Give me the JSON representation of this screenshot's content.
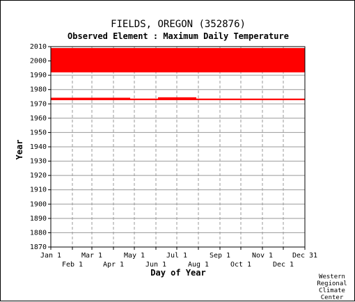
{
  "chart_data": {
    "type": "availability-timeline",
    "title": "FIELDS, OREGON    (352876)",
    "subtitle": "Observed Element : Maximum Daily Temperature",
    "xlabel": "Day of Year",
    "ylabel": "Year",
    "ylim": [
      1870,
      2010
    ],
    "yticks": [
      1870,
      1880,
      1890,
      1900,
      1910,
      1920,
      1930,
      1940,
      1950,
      1960,
      1970,
      1980,
      1990,
      2000,
      2010
    ],
    "xticks_upper": [
      "Jan 1",
      "Mar 1",
      "May 1",
      "Jul 1",
      "Sep 1",
      "Nov 1",
      "Dec 31"
    ],
    "xticks_lower": [
      "Feb 1",
      "Apr 1",
      "Jun 1",
      "Aug 1",
      "Oct 1",
      "Dec 1"
    ],
    "month_start_days": [
      1,
      32,
      60,
      91,
      121,
      152,
      182,
      213,
      244,
      274,
      305,
      335,
      366
    ],
    "grid": true,
    "series_color": "#ff0000",
    "bars": [
      {
        "year_from": 1992,
        "year_to": 2009,
        "day_from": 1,
        "day_to": 366
      },
      {
        "year_from": 1972.6,
        "year_to": 1973.7,
        "day_from": 1,
        "day_to": 366
      },
      {
        "year_from": 1973.4,
        "year_to": 1974.3,
        "day_from": 1,
        "day_to": 115
      },
      {
        "year_from": 1973.6,
        "year_to": 1974.6,
        "day_from": 155,
        "day_to": 210
      }
    ]
  },
  "credit": [
    "Western",
    "Regional",
    "Climate",
    "Center"
  ]
}
